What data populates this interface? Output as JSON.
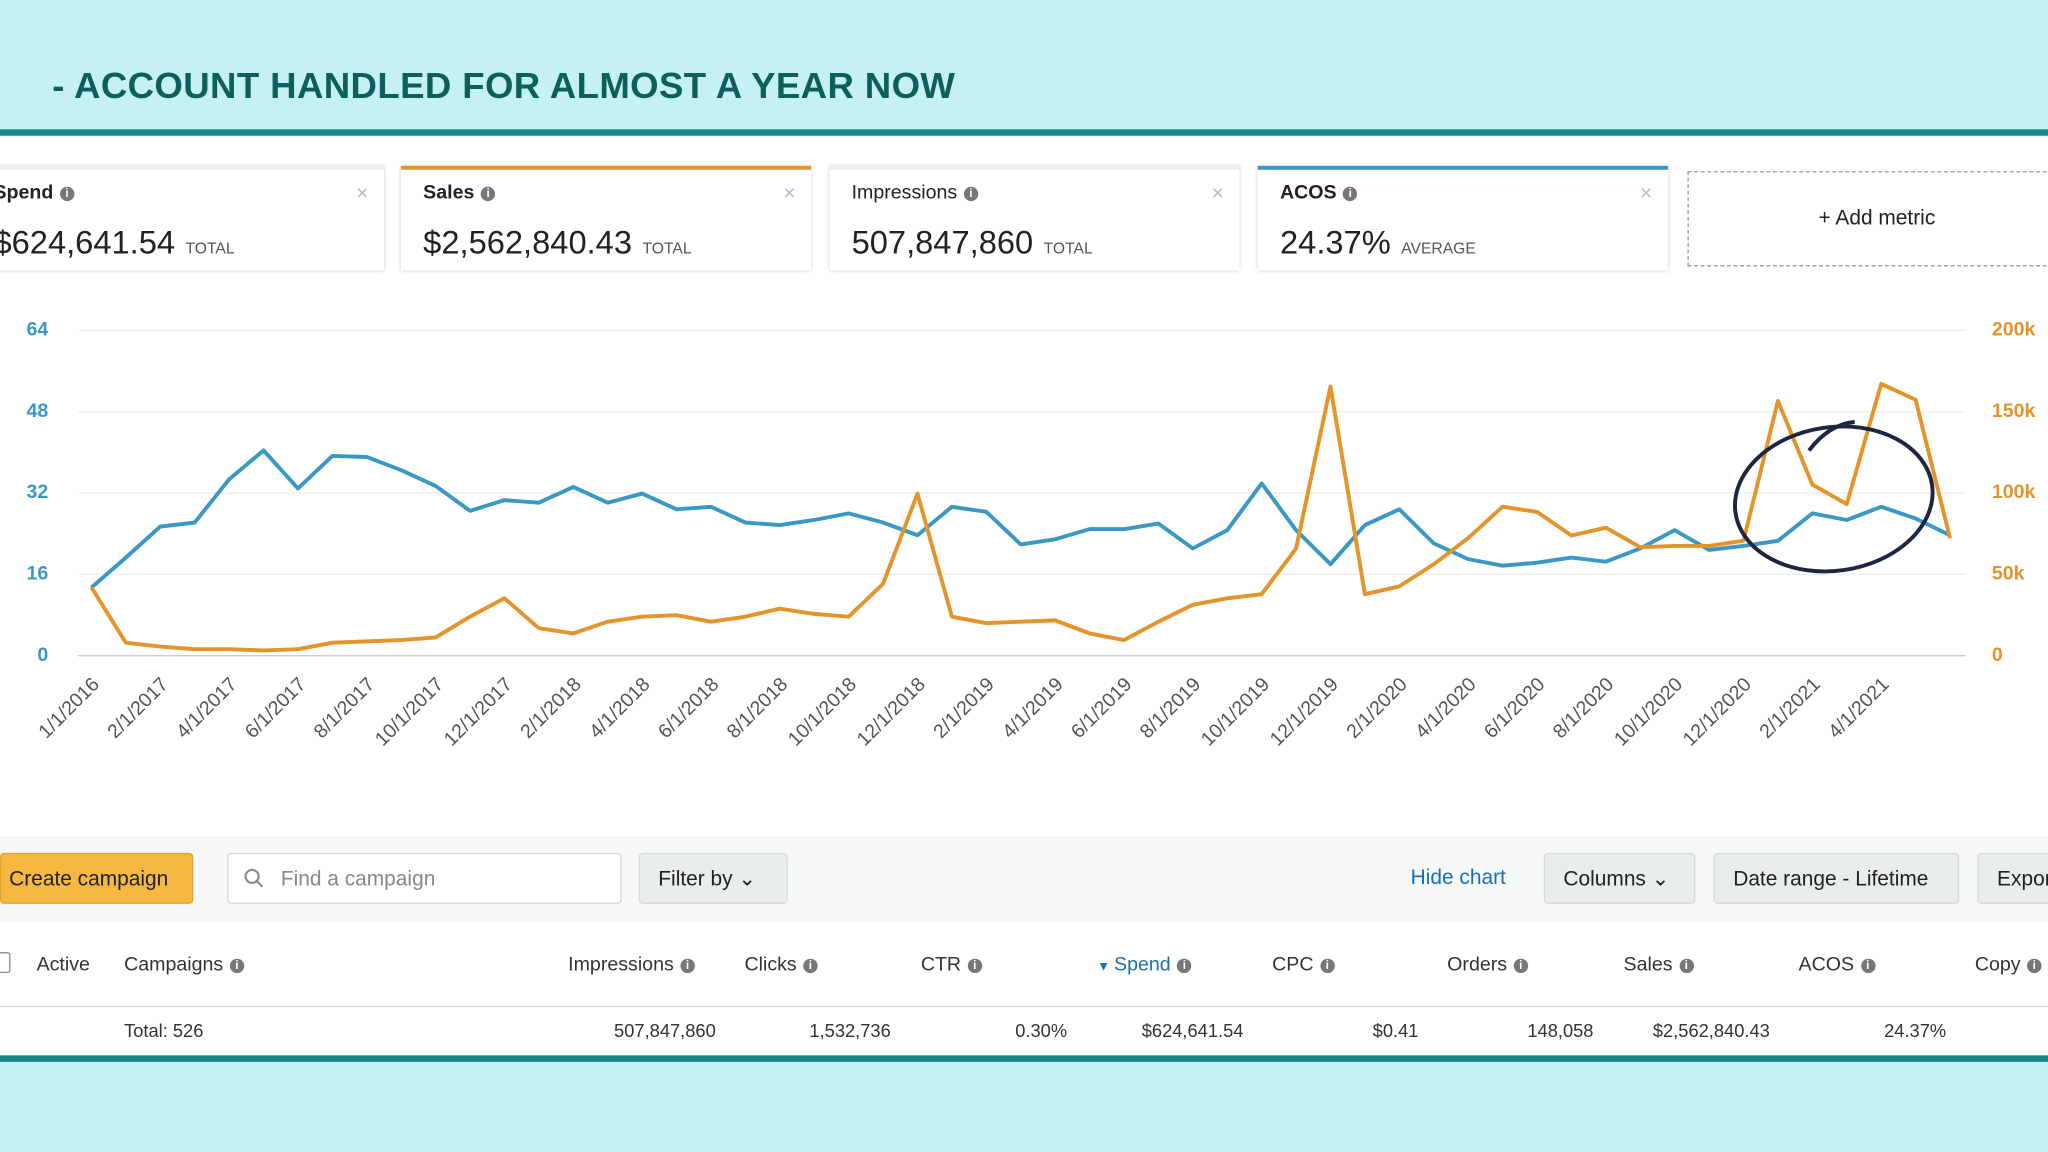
{
  "header": {
    "title": "- ACCOUNT HANDLED FOR ALMOST A YEAR NOW"
  },
  "metrics": [
    {
      "name": "Spend",
      "value": "$624,641.54",
      "unit": "TOTAL"
    },
    {
      "name": "Sales",
      "value": "$2,562,840.43",
      "unit": "TOTAL"
    },
    {
      "name": "Impressions",
      "value": "507,847,860",
      "unit": "TOTAL"
    },
    {
      "name": "ACOS",
      "value": "24.37%",
      "unit": "AVERAGE"
    }
  ],
  "add_metric": "+ Add metric",
  "chart_data": {
    "type": "line",
    "categories": [
      "1/1/2016",
      null,
      "2/1/2017",
      null,
      "4/1/2017",
      null,
      "6/1/2017",
      null,
      "8/1/2017",
      null,
      "10/1/2017",
      null,
      "12/1/2017",
      null,
      "2/1/2018",
      null,
      "4/1/2018",
      null,
      "6/1/2018",
      null,
      "8/1/2018",
      null,
      "10/1/2018",
      null,
      "12/1/2018",
      null,
      "2/1/2019",
      null,
      "4/1/2019",
      null,
      "6/1/2019",
      null,
      "8/1/2019",
      null,
      "10/1/2019",
      null,
      "12/1/2019",
      null,
      "2/1/2020",
      null,
      "4/1/2020",
      null,
      "6/1/2020",
      null,
      "8/1/2020",
      null,
      "10/1/2020",
      null,
      "12/1/2020",
      null,
      "2/1/2021",
      null,
      "4/1/2021",
      null,
      null
    ],
    "series": [
      {
        "color": "#3b98c4",
        "values": [
          13.4,
          19.3,
          25.4,
          26.2,
          34.7,
          40.4,
          32.9,
          39.3,
          39.1,
          36.5,
          33.4,
          28.5,
          30.6,
          30.1,
          33.2,
          30.1,
          31.9,
          28.8,
          29.3,
          26.2,
          25.7,
          26.7,
          28.0,
          26.2,
          23.7,
          29.3,
          28.3,
          21.9,
          22.9,
          24.9,
          24.9,
          26.0,
          21.1,
          24.7,
          33.9,
          24.7,
          18.0,
          25.7,
          28.8,
          22.1,
          19.0,
          17.7,
          18.3,
          19.3,
          18.5,
          21.1,
          24.7,
          20.8,
          21.6,
          22.6,
          28.0,
          26.7,
          29.3,
          27.0,
          23.7
        ]
      },
      {
        "color": "#e3942b",
        "axis": "y2",
        "values": [
          42000,
          8000,
          5600,
          4000,
          4000,
          3200,
          4000,
          8000,
          8800,
          9600,
          11200,
          24000,
          35300,
          16900,
          13700,
          20900,
          24000,
          24900,
          20900,
          24000,
          28900,
          25700,
          24000,
          44200,
          99600,
          24000,
          20000,
          20900,
          21700,
          13700,
          9600,
          20900,
          31300,
          35300,
          37800,
          65900,
          165500,
          37800,
          42600,
          56200,
          72300,
          91600,
          88400,
          73900,
          78700,
          66700,
          67500,
          67500,
          70700,
          156600,
          105200,
          93200,
          167100,
          157400,
          72300
        ]
      }
    ],
    "ylim": [
      0,
      64
    ],
    "yticks": [
      0,
      16,
      32,
      48,
      64
    ],
    "y2lim": [
      0,
      200000
    ],
    "y2ticks": [
      0,
      {
        "value": 50000,
        "label": "50k"
      },
      {
        "value": 100000,
        "label": "100k"
      },
      {
        "value": 150000,
        "label": "150k"
      },
      {
        "value": 200000,
        "label": "200k"
      }
    ],
    "grid": true
  },
  "toolbar": {
    "create": "Create campaign",
    "search": "Find a campaign",
    "filter": "Filter by",
    "hide_chart": "Hide chart",
    "columns": "Columns",
    "date_range": "Date range - Lifetime",
    "export": "Export"
  },
  "table": {
    "headers": [
      "Active",
      "Campaigns",
      "Impressions",
      "Clicks",
      "CTR",
      "Spend",
      "CPC",
      "Orders",
      "Sales",
      "ACOS",
      "Copy"
    ],
    "total_label": "Total: 526",
    "totals": [
      "507,847,860",
      "1,532,736",
      "0.30%",
      "$624,641.54",
      "$0.41",
      "148,058",
      "$2,562,840.43",
      "24.37%"
    ]
  }
}
